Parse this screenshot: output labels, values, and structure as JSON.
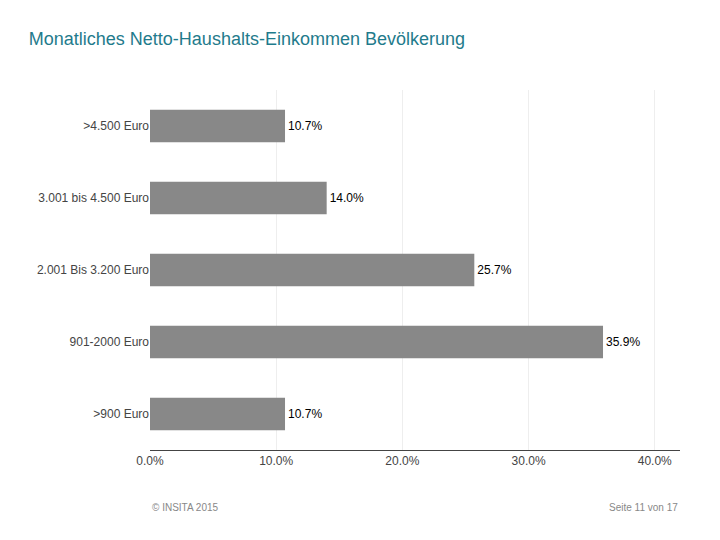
{
  "chart_data": {
    "type": "bar",
    "orientation": "horizontal",
    "title": "Monatliches Netto-Haushalts-Einkommen Bevölkerung",
    "categories": [
      ">4.500 Euro",
      "3.001 bis 4.500 Euro",
      "2.001 Bis 3.200 Euro",
      "901-2000 Euro",
      ">900 Euro"
    ],
    "values": [
      10.7,
      14.0,
      25.7,
      35.9,
      10.7
    ],
    "value_labels": [
      "10.7%",
      "14.0%",
      "25.7%",
      "35.9%",
      "10.7%"
    ],
    "data_labels": true,
    "color": "#888888",
    "xlim": [
      0,
      42
    ],
    "xticks": [
      {
        "value": 0,
        "label": "0.0%"
      },
      {
        "value": 10,
        "label": "10.0%"
      },
      {
        "value": 20,
        "label": "20.0%"
      },
      {
        "value": 30,
        "label": "30.0%"
      },
      {
        "value": 40,
        "label": "40.0%"
      }
    ],
    "grid": true,
    "annotations": [
      "© INSITA 2015",
      "Seite 11 von 17"
    ]
  }
}
